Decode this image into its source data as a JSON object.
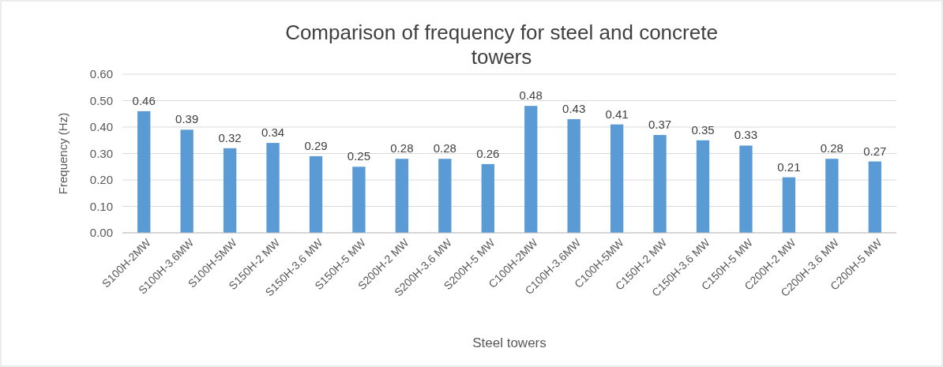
{
  "chart_data": {
    "type": "bar",
    "title": "Comparison of frequency for steel and concrete towers",
    "xlabel": "Steel towers",
    "ylabel": "Frequency (Hz)",
    "categories": [
      "S100H-2MW",
      "S100H-3.6MW",
      "S100H-5MW",
      "S150H-2 MW",
      "S150H-3.6 MW",
      "S150H-5 MW",
      "S200H-2 MW",
      "S200H-3.6 MW",
      "S200H-5 MW",
      "C100H-2MW",
      "C100H-3.6MW",
      "C100H-5MW",
      "C150H-2 MW",
      "C150H-3.6 MW",
      "C150H-5 MW",
      "C200H-2 MW",
      "C200H-3.6 MW",
      "C200H-5 MW"
    ],
    "values": [
      0.46,
      0.39,
      0.32,
      0.34,
      0.29,
      0.25,
      0.28,
      0.28,
      0.26,
      0.48,
      0.43,
      0.41,
      0.37,
      0.35,
      0.33,
      0.21,
      0.28,
      0.27
    ],
    "color": "#5b9bd5",
    "ylim": [
      0,
      0.6
    ],
    "yticks": [
      {
        "value": 0,
        "label": "0.00"
      },
      {
        "value": 0.1,
        "label": "0.10"
      },
      {
        "value": 0.2,
        "label": "0.20"
      },
      {
        "value": 0.3,
        "label": "0.30"
      },
      {
        "value": 0.4,
        "label": "0.40"
      },
      {
        "value": 0.5,
        "label": "0.50"
      },
      {
        "value": 0.6,
        "label": "0.60"
      }
    ],
    "grid": "y",
    "data_labels": true
  }
}
